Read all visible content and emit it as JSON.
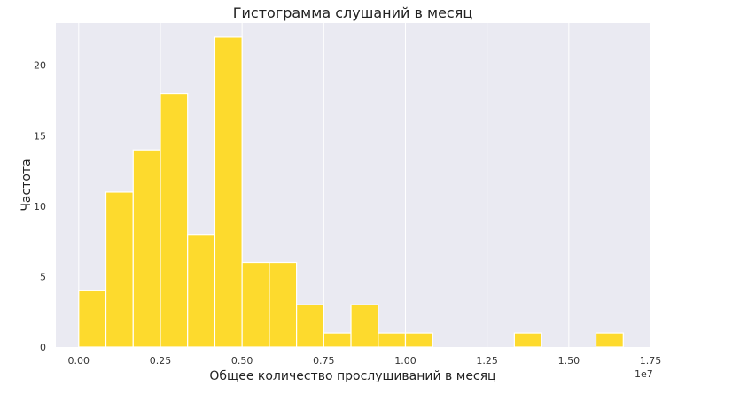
{
  "chart_data": {
    "type": "bar",
    "title": "Гистограмма слушаний в месяц",
    "xlabel": "Общее количество прослушиваний в месяц",
    "ylabel": "Частота",
    "x_offset_label": "1e7",
    "xlim": [
      -0.07,
      1.75
    ],
    "ylim": [
      0,
      23
    ],
    "x_ticks": [
      0.0,
      0.25,
      0.5,
      0.75,
      1.0,
      1.25,
      1.5,
      1.75
    ],
    "x_tick_labels": [
      "0.00",
      "0.25",
      "0.50",
      "0.75",
      "1.00",
      "1.25",
      "1.50",
      "1.75"
    ],
    "y_ticks": [
      0,
      5,
      10,
      15,
      20
    ],
    "y_tick_labels": [
      "0",
      "5",
      "10",
      "15",
      "20"
    ],
    "bin_edges": [
      0.0,
      0.0833,
      0.1667,
      0.25,
      0.3333,
      0.4167,
      0.5,
      0.5833,
      0.6667,
      0.75,
      0.8333,
      0.9167,
      1.0,
      1.0833,
      1.1667,
      1.25,
      1.3333,
      1.4167,
      1.5,
      1.5833,
      1.6667
    ],
    "values": [
      4,
      11,
      14,
      18,
      8,
      22,
      6,
      6,
      3,
      1,
      3,
      1,
      1,
      0,
      0,
      0,
      1,
      0,
      0,
      1
    ],
    "grid": "x-only",
    "colors": {
      "bar": "#fdda2d",
      "bar_edge": "#ffffff",
      "plot_bg": "#eaeaf2",
      "grid": "#ffffff"
    }
  }
}
